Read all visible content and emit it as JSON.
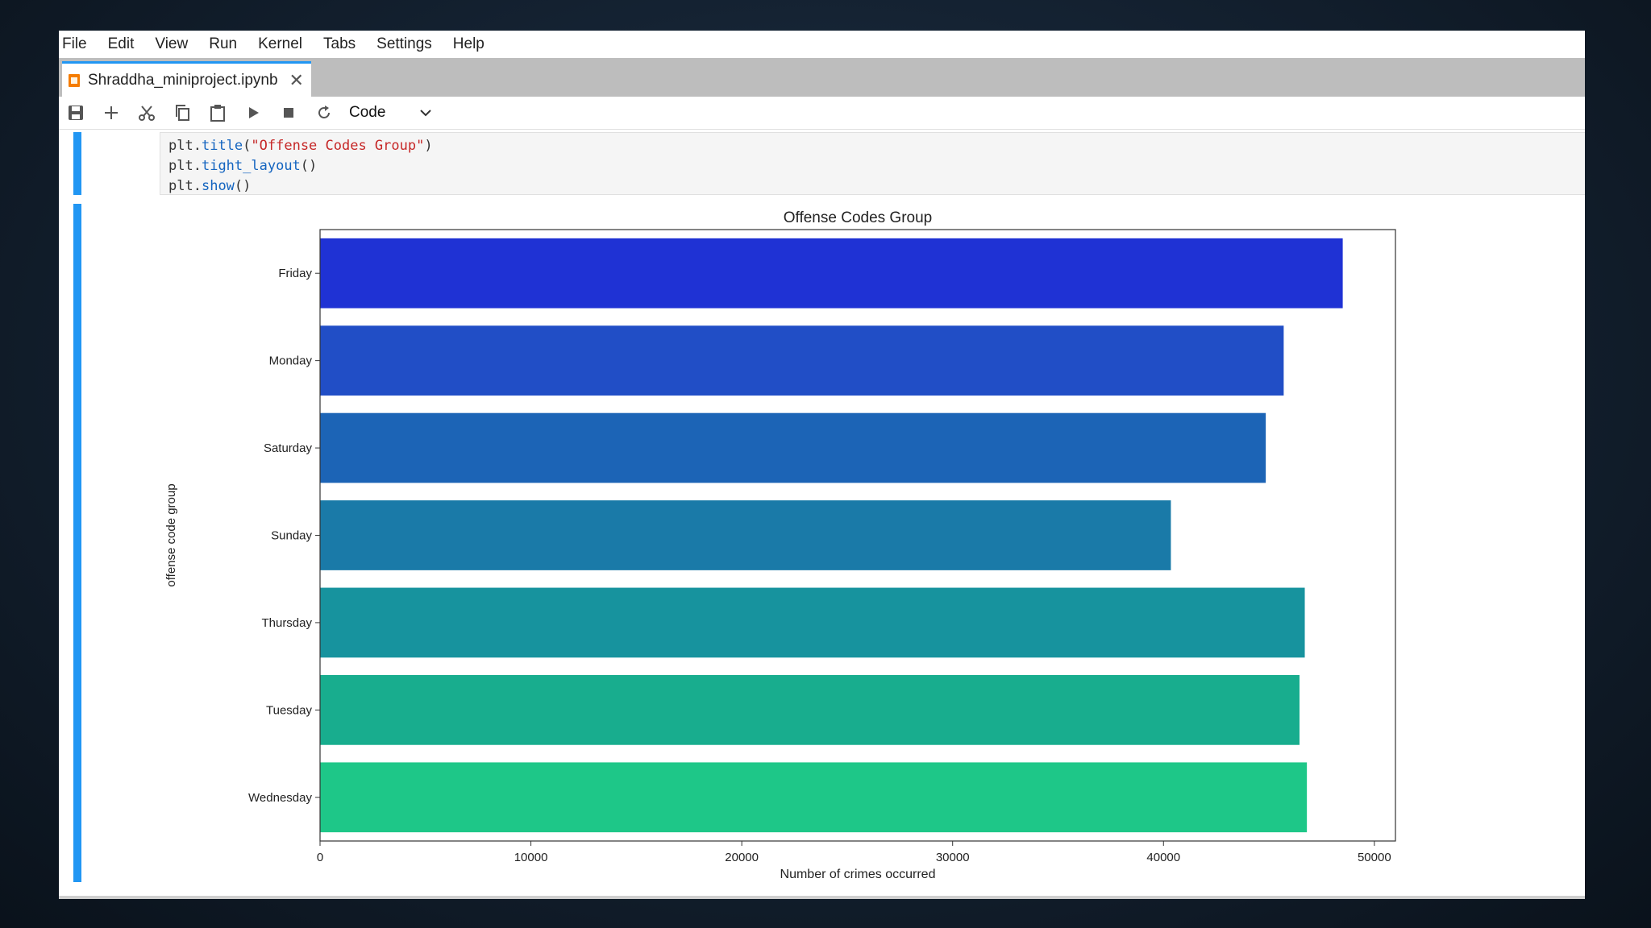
{
  "menu": [
    "File",
    "Edit",
    "View",
    "Run",
    "Kernel",
    "Tabs",
    "Settings",
    "Help"
  ],
  "tab": {
    "title": "Shraddha_miniproject.ipynb",
    "close": "✕"
  },
  "toolbar": {
    "icons": [
      "save-icon",
      "add-cell-icon",
      "cut-icon",
      "copy-icon",
      "paste-icon",
      "run-icon",
      "stop-icon",
      "restart-icon"
    ],
    "cell_type": "Code"
  },
  "code_lines": [
    [
      {
        "t": "plt",
        "c": "var"
      },
      {
        "t": ".",
        "c": "p"
      },
      {
        "t": "title",
        "c": "fn"
      },
      {
        "t": "(",
        "c": "p"
      },
      {
        "t": "\"Offense Codes Group\"",
        "c": "str"
      },
      {
        "t": ")",
        "c": "p"
      }
    ],
    [
      {
        "t": "plt",
        "c": "var"
      },
      {
        "t": ".",
        "c": "p"
      },
      {
        "t": "tight_layout",
        "c": "fn"
      },
      {
        "t": "()",
        "c": "p"
      }
    ],
    [
      {
        "t": "plt",
        "c": "var"
      },
      {
        "t": ".",
        "c": "p"
      },
      {
        "t": "show",
        "c": "fn"
      },
      {
        "t": "()",
        "c": "p"
      }
    ]
  ],
  "chart_data": {
    "type": "bar",
    "orientation": "horizontal",
    "title": "Offense Codes Group",
    "xlabel": "Number of crimes occurred",
    "ylabel": "offense code group",
    "categories": [
      "Friday",
      "Monday",
      "Saturday",
      "Sunday",
      "Thursday",
      "Tuesday",
      "Wednesday"
    ],
    "values": [
      48500,
      45700,
      44850,
      40350,
      46700,
      46450,
      46800
    ],
    "colors": [
      "#1f32d4",
      "#214ec6",
      "#1c64b6",
      "#1a7aa8",
      "#17939e",
      "#18ad8e",
      "#1ec788"
    ],
    "xticks": [
      0,
      10000,
      20000,
      30000,
      40000,
      50000
    ],
    "xlim": [
      0,
      51000
    ],
    "grid": false
  }
}
